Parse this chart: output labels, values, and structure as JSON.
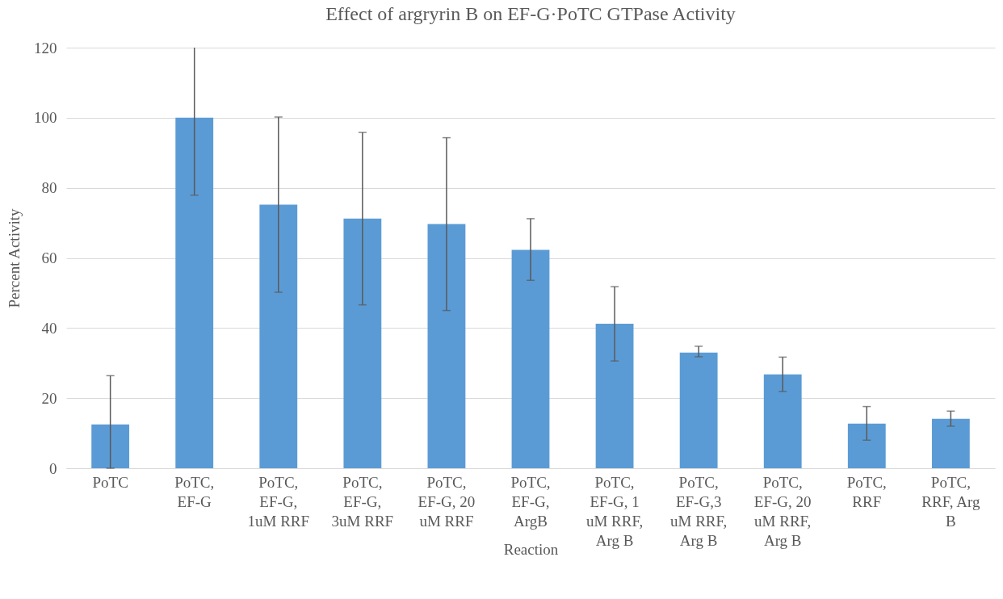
{
  "chart_data": {
    "type": "bar",
    "title": "Effect of argryrin B on EF-G·PoTC GTPase Activity",
    "xlabel": "Reaction",
    "ylabel": "Percent Activity",
    "categories": [
      "PoTC",
      "PoTC, EF-G",
      "PoTC, EF-G, 1uM RRF",
      "PoTC, EF-G, 3uM RRF",
      "PoTC, EF-G, 20 uM RRF",
      "PoTC, EF-G, ArgB",
      "PoTC, EF-G, 1 uM RRF, Arg B",
      "PoTC, EF-G,3 uM RRF, Arg B",
      "PoTC, EF-G, 20 uM RRF, Arg B",
      "PoTC, RRF",
      "PoTC, RRF, Arg B"
    ],
    "values": [
      12.5,
      100,
      75.2,
      71.2,
      69.7,
      62.3,
      41.2,
      33.0,
      26.8,
      12.7,
      14.1
    ],
    "errors": [
      [
        0,
        26.4
      ],
      [
        77.9,
        120
      ],
      [
        50.2,
        100.2
      ],
      [
        46.6,
        95.8
      ],
      [
        45.0,
        94.3
      ],
      [
        53.6,
        71.2
      ],
      [
        30.6,
        51.8
      ],
      [
        31.8,
        34.8
      ],
      [
        21.9,
        31.7
      ],
      [
        8.0,
        17.6
      ],
      [
        12.0,
        16.3
      ]
    ],
    "color": "#5b9bd5",
    "ylim": [
      0,
      120
    ],
    "yticks": [
      0,
      20,
      40,
      60,
      80,
      100,
      120
    ],
    "grid": "y"
  }
}
